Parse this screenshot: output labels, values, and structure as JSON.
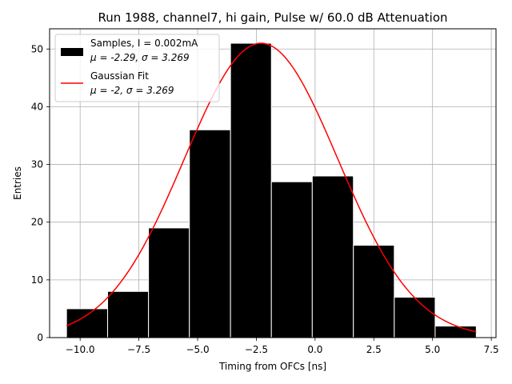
{
  "chart_data": {
    "type": "bar",
    "title": "Run 1988, channel7, hi gain, Pulse w/ 60.0 dB Attenuation",
    "xlabel": "Timing from OFCs [ns]",
    "ylabel": "Entries",
    "xlim": [
      -11.3,
      7.7
    ],
    "ylim": [
      0,
      53.5
    ],
    "xticks": [
      -10.0,
      -7.5,
      -5.0,
      -2.5,
      0.0,
      2.5,
      5.0,
      7.5
    ],
    "xtick_labels": [
      "−10.0",
      "−7.5",
      "−5.0",
      "−2.5",
      "0.0",
      "2.5",
      "5.0",
      "7.5"
    ],
    "yticks": [
      0,
      10,
      20,
      30,
      40,
      50
    ],
    "ytick_labels": [
      "0",
      "10",
      "20",
      "30",
      "40",
      "50"
    ],
    "grid": true,
    "legend_position": "top-left",
    "histogram": {
      "bin_edges": [
        -10.58,
        -8.83,
        -7.09,
        -5.35,
        -3.6,
        -1.86,
        -0.12,
        1.63,
        3.37,
        5.11,
        6.86
      ],
      "counts": [
        5,
        8,
        19,
        36,
        51,
        27,
        28,
        16,
        7,
        2
      ],
      "color": "#000000",
      "edge_color": "#ffffff"
    },
    "fit": {
      "type": "gaussian",
      "amplitude": 51,
      "mean": -2.3,
      "sigma": 3.269,
      "x_range": [
        -10.58,
        6.86
      ],
      "color": "#ff0000"
    },
    "legend": [
      {
        "line1": "Samples, I = 0.002mA",
        "line2": "μ = -2.29, σ = 3.269",
        "swatch": "patch",
        "color": "#000000"
      },
      {
        "line1": "Gaussian Fit",
        "line2": "μ = -2, σ = 3.269",
        "swatch": "line",
        "color": "#ff0000"
      }
    ]
  }
}
